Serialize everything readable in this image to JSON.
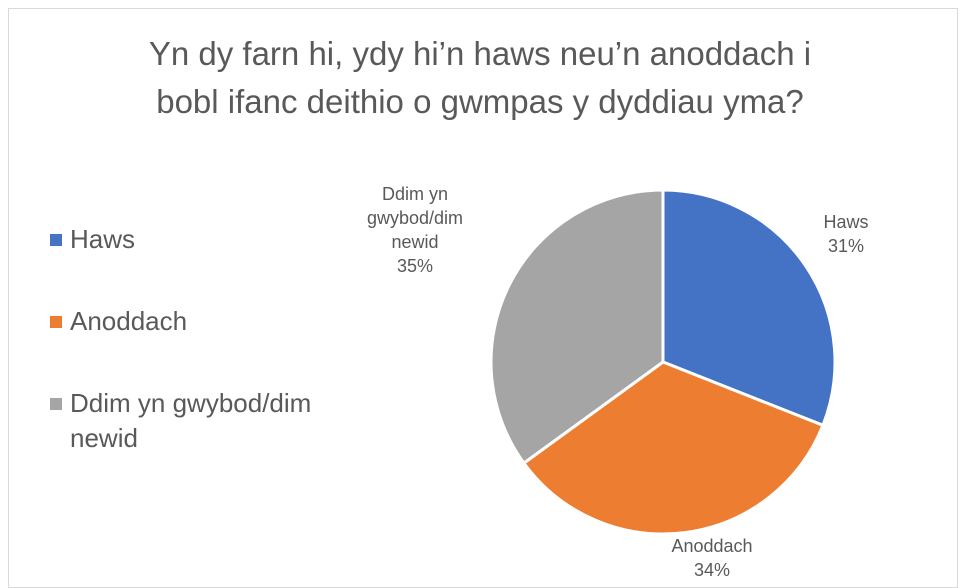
{
  "chart_data": {
    "type": "pie",
    "title_lines": [
      "Yn dy farn hi, ydy hi’n haws neu’n anoddach i",
      "bobl ifanc deithio o gwmpas y dyddiau yma?"
    ],
    "categories": [
      "Haws",
      "Anoddach",
      "Ddim yn gwybod/dim newid"
    ],
    "values": [
      31,
      34,
      35
    ],
    "value_labels": [
      "31%",
      "34%",
      "35%"
    ],
    "colors": [
      "#4472c4",
      "#ed7d31",
      "#a5a5a5"
    ],
    "legend": {
      "placement": "left",
      "entries": [
        {
          "label": "Haws",
          "color": "#4472c4"
        },
        {
          "label": "Anoddach",
          "color": "#ed7d31"
        },
        {
          "label": "Ddim yn gwybod/dim newid",
          "color": "#a5a5a5"
        }
      ]
    },
    "slice_labels": [
      {
        "name_lines": [
          "Haws"
        ],
        "percent": "31%"
      },
      {
        "name_lines": [
          "Anoddach"
        ],
        "percent": "34%"
      },
      {
        "name_lines": [
          "Ddim yn",
          "gwybod/dim",
          "newid"
        ],
        "percent": "35%"
      }
    ]
  }
}
